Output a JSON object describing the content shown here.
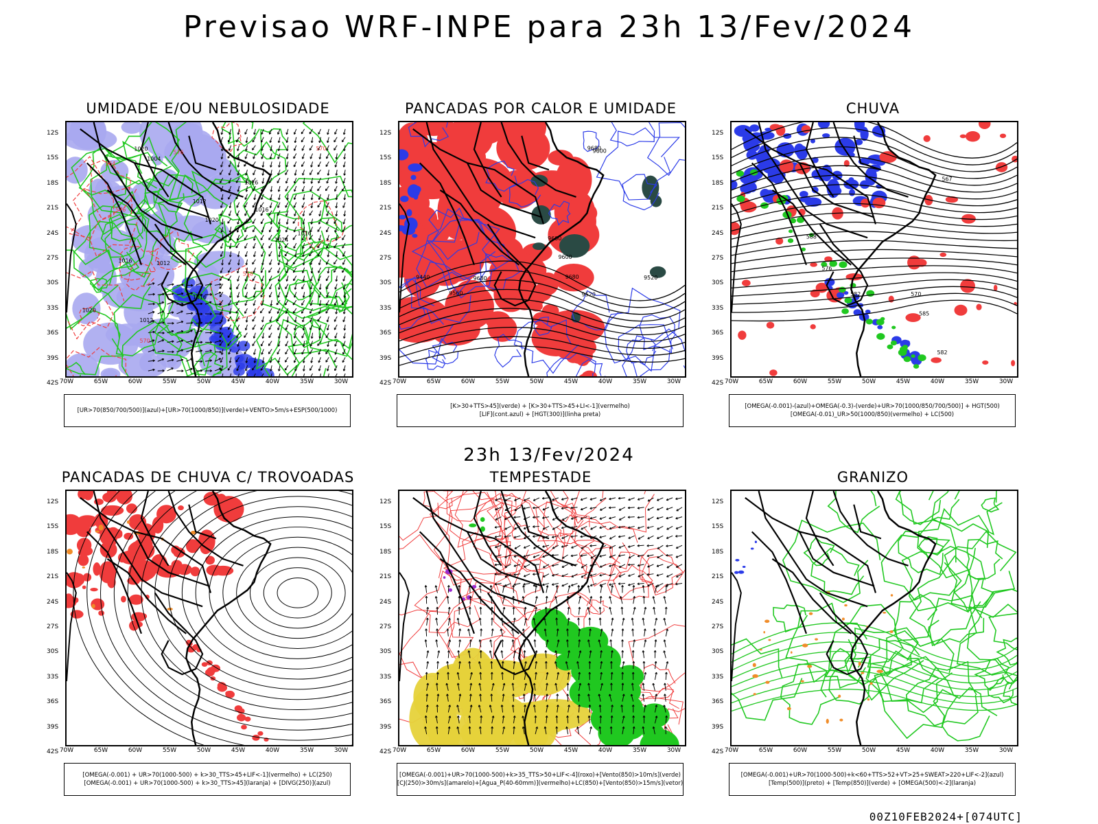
{
  "page": {
    "title": "Previsao WRF-INPE  para 23h 13/Fev/2024",
    "mid_title": "23h 13/Fev/2024",
    "footer_stamp": "00Z10FEB2024+[074UTC]"
  },
  "axes": {
    "lat_labels": [
      "12S",
      "15S",
      "18S",
      "21S",
      "24S",
      "27S",
      "30S",
      "33S",
      "36S",
      "39S",
      "42S"
    ],
    "lon_labels": [
      "70W",
      "65W",
      "60W",
      "55W",
      "50W",
      "45W",
      "40W",
      "35W",
      "30W"
    ]
  },
  "colors": {
    "blue": "#2b3be8",
    "lightblue": "#a9a9f0",
    "green": "#20c820",
    "red": "#f03c3c",
    "darkgreen": "#2a4a44",
    "yellow": "#e6d23a",
    "orange": "#f08c28",
    "purple": "#9b2bd0",
    "black": "#000000"
  },
  "panels": [
    {
      "id": "umidade",
      "title": "UMIDADE E/OU NEBULOSIDADE",
      "legend": [
        "[UR>70(850/700/500)](azul)+[UR>70(1000/850)](verde)+VENTO>5m/s+ESP(500/1000)"
      ],
      "contour_labels": [
        "1012",
        "1012",
        "1016",
        "1016",
        "1016",
        "1020",
        "1020",
        "1016",
        "1012",
        "1016",
        "1004",
        "1024",
        "1020"
      ],
      "thickness_labels": [
        "570",
        "576",
        "576",
        "564",
        "558",
        "570"
      ]
    },
    {
      "id": "pancadas_calor",
      "title": "PANCADAS POR CALOR E UMIDADE",
      "legend": [
        "[K>30+TTS>45](verde) + [K>30+TTS>45+LI<-1](vermelho)",
        "[LIF](cont.azul) + [HGT(300)](linha preta)"
      ],
      "contour_labels": [
        "9680",
        "9680",
        "9680",
        "9600",
        "9600",
        "9600",
        "9440",
        "9520",
        "9520",
        "9560"
      ]
    },
    {
      "id": "chuva",
      "title": "CHUVA",
      "legend": [
        "[OMEGA(-0.001)-(azul)+OMEGA(-0.3)-(verde)+UR>70(1000/850/700/500)] + HGT(500)",
        "[OMEGA(-0.01)_UR>50(1000/850)(vermelho) + LC(500)"
      ],
      "contour_labels": [
        "588",
        "582",
        "585",
        "582",
        "576",
        "570",
        "567"
      ]
    },
    {
      "id": "pancadas_trovoadas",
      "title": "PANCADAS DE CHUVA C/ TROVOADAS",
      "legend": [
        "[OMEGA(-0.001) + UR>70(1000-500) + k>30_TTS>45+LIF<-1](vermelho) + LC(250)",
        "[OMEGA(-0.001) + UR>70(1000-500) + k>30_TTS>45](laranja) + [DIVG(250)](azul)"
      ]
    },
    {
      "id": "tempestade",
      "title": "TEMPESTADE",
      "legend": [
        "[OMEGA(-0.001)+UR>70(1000-500)+k>35_TTS>50+LIF<-4](roxo)+[Vento(850)>10m/s](verde)",
        "[CJ(250)>30m/s](amarelo)+[Agua_P(40-60mm)](vermelho)+LC(850)+[Vento(850)>15m/s](vetor)"
      ]
    },
    {
      "id": "granizo",
      "title": "GRANIZO",
      "legend": [
        "[OMEGA(-0.001)+UR>70(1000-500)+k<60+TTS>52+VT>25+SWEAT>220+LIF<-2](azul)",
        "[Temp(500)](preto) + [Temp(850)](verde) + [OMEGA(500)<-2](laranja)"
      ]
    }
  ]
}
